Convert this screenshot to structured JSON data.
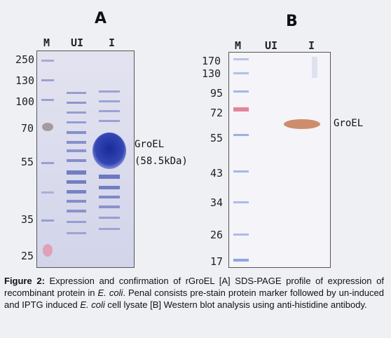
{
  "panel_a": {
    "title": "A",
    "lanes": [
      "M",
      "UI",
      "I"
    ],
    "mw_markers": [
      "250",
      "130",
      "100",
      "70",
      "55",
      "35",
      "25"
    ],
    "band_label_line1": "GroEL",
    "band_label_line2": "(58.5kDa)"
  },
  "panel_b": {
    "title": "B",
    "lanes": [
      "M",
      "UI",
      "I"
    ],
    "mw_markers": [
      "170",
      "130",
      "95",
      "72",
      "55",
      "43",
      "34",
      "26",
      "17"
    ],
    "band_label": "GroEL"
  },
  "caption": {
    "label": "Figure 2:",
    "part1": " Expression and confirmation of rGroEL [A] SDS-PAGE profile of expression of recombinant protein in ",
    "ecoli1": "E. coli",
    "part2": ". Penal consists pre-stain protein marker followed by un-induced and IPTG induced ",
    "ecoli2": "E. coli",
    "part3": " cell lysate [B] Western blot analysis using anti-histidine antibody."
  },
  "colors": {
    "gel_background": "#dcdcec",
    "coomassie_blue": "#2a3c9a",
    "membrane_background": "#f3f3f8",
    "western_band": "#c9825c",
    "marker_red": "#e0708a"
  }
}
